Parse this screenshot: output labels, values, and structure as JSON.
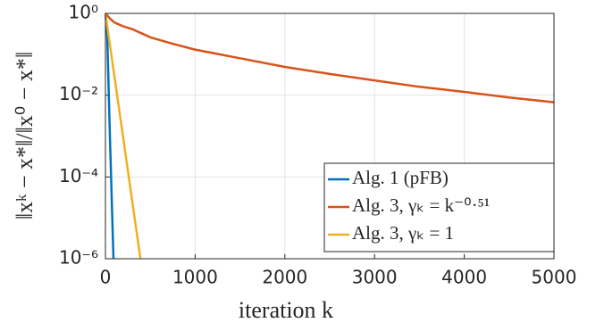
{
  "chart_data": {
    "type": "line",
    "xlabel": "iteration k",
    "ylabel": "‖xᵏ − x*‖/‖x⁰ − x*‖",
    "yscale": "log",
    "grid": true,
    "legend": "lower right",
    "xlim": [
      0,
      5000
    ],
    "xticks": [
      0,
      1000,
      2000,
      3000,
      4000,
      5000
    ],
    "ylim": [
      1e-06,
      1
    ],
    "yticks": [
      {
        "value": 1,
        "label": "10⁰"
      },
      {
        "value": 0.01,
        "label": "10⁻²"
      },
      {
        "value": 0.0001,
        "label": "10⁻⁴"
      },
      {
        "value": 1e-06,
        "label": "10⁻⁶"
      }
    ],
    "series": [
      {
        "name": "Alg. 1 (pFB)",
        "color": "#0072bd",
        "x": [
          0,
          20,
          50,
          90
        ],
        "values": [
          1,
          0.3,
          0.001,
          1e-06
        ]
      },
      {
        "name": "Alg. 3, γₖ = k⁻⁰·⁵¹",
        "color": "#d95319",
        "x": [
          0,
          50,
          100,
          200,
          300,
          500,
          750,
          1000,
          1500,
          2000,
          2500,
          3000,
          3500,
          4000,
          4500,
          5000
        ],
        "values": [
          1,
          0.75,
          0.6,
          0.48,
          0.41,
          0.26,
          0.18,
          0.13,
          0.08,
          0.049,
          0.033,
          0.023,
          0.016,
          0.012,
          0.0088,
          0.0067
        ]
      },
      {
        "name": "Alg. 3, γₖ = 1",
        "color": "#edb120",
        "x": [
          0,
          390
        ],
        "values": [
          1,
          1e-06
        ]
      }
    ]
  }
}
